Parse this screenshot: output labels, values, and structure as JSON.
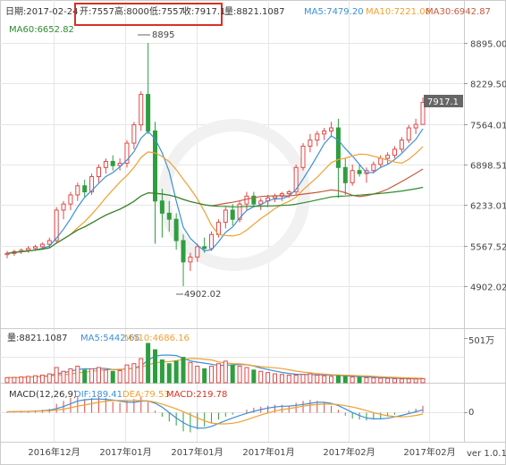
{
  "header": {
    "date": "日期:2017-02-24",
    "open": "开:7557",
    "high": "高:8000",
    "low": "低:7557",
    "close": "收:7917.1",
    "volume": "量:8821.1087",
    "ma5": "MA5:7479.20",
    "ma10": "MA10:7221.08",
    "ma30": "MA30:6942.87",
    "ma60": "MA60:6652.82"
  },
  "volume_panel": {
    "volume": "量:8821.1087",
    "ma5": "MA5:5442.65",
    "ma10": "MA10:4686.16",
    "axis_label": "501万"
  },
  "macd_panel": {
    "title": "MACD(12,26,9)",
    "dif": "DIF:189.41",
    "dea": "DEA:79.53",
    "macd": "MACD:219.78",
    "axis_label": "0"
  },
  "footer": {
    "version": "ver 1.0.1"
  },
  "colors": {
    "up": "#e04848",
    "down": "#2e9e3e",
    "ma5": "#3d8fd6",
    "ma10": "#f0a030",
    "ma30": "#c85a3c",
    "ma60": "#2e8b2e",
    "highlight": "#d93025",
    "grid": "#e6e6e6"
  },
  "chart_data": {
    "type": "candlestick",
    "price_axis_ticks": [
      "8895.00",
      "8229.50",
      "7564.01",
      "6898.51",
      "6233.01",
      "5567.52",
      "4902.02"
    ],
    "price_range": [
      4902.02,
      8895.0
    ],
    "x_tick_labels": [
      "2016年12月",
      "2017年01月",
      "2017年01月",
      "2017年01月",
      "2017年02月",
      "2017年02月"
    ],
    "last_price_label": "7917.1",
    "high_marker": "8895",
    "low_marker": "4902.02",
    "candles": [
      [
        5420,
        5480,
        5360,
        5440
      ],
      [
        5440,
        5500,
        5400,
        5470
      ],
      [
        5470,
        5520,
        5430,
        5490
      ],
      [
        5490,
        5560,
        5450,
        5520
      ],
      [
        5520,
        5580,
        5480,
        5550
      ],
      [
        5550,
        5620,
        5510,
        5590
      ],
      [
        5590,
        5700,
        5540,
        5650
      ],
      [
        5650,
        6200,
        5620,
        6150
      ],
      [
        6150,
        6300,
        6000,
        6250
      ],
      [
        6250,
        6450,
        6150,
        6400
      ],
      [
        6400,
        6600,
        6300,
        6550
      ],
      [
        6550,
        6650,
        6350,
        6450
      ],
      [
        6450,
        6750,
        6400,
        6700
      ],
      [
        6700,
        6900,
        6600,
        6850
      ],
      [
        6850,
        7000,
        6750,
        6950
      ],
      [
        6950,
        7050,
        6800,
        6880
      ],
      [
        6880,
        7000,
        6800,
        6920
      ],
      [
        6920,
        7300,
        6850,
        7250
      ],
      [
        7250,
        7600,
        7150,
        7550
      ],
      [
        7550,
        8100,
        7450,
        8050
      ],
      [
        8050,
        8895,
        7400,
        7450
      ],
      [
        7450,
        7600,
        5600,
        6300
      ],
      [
        6300,
        6500,
        5700,
        6100
      ],
      [
        6100,
        6300,
        5800,
        6000
      ],
      [
        6000,
        6100,
        5500,
        5650
      ],
      [
        5650,
        5750,
        4902.02,
        5300
      ],
      [
        5300,
        5450,
        5150,
        5380
      ],
      [
        5380,
        5600,
        5300,
        5550
      ],
      [
        5550,
        5700,
        5450,
        5520
      ],
      [
        5520,
        5800,
        5480,
        5750
      ],
      [
        5750,
        6000,
        5700,
        5950
      ],
      [
        5950,
        6200,
        5850,
        6150
      ],
      [
        6150,
        6250,
        5900,
        6000
      ],
      [
        6000,
        6300,
        5950,
        6250
      ],
      [
        6250,
        6450,
        6150,
        6380
      ],
      [
        6380,
        6450,
        6200,
        6250
      ],
      [
        6250,
        6350,
        6150,
        6300
      ],
      [
        6300,
        6400,
        6200,
        6350
      ],
      [
        6350,
        6420,
        6280,
        6380
      ],
      [
        6380,
        6450,
        6300,
        6420
      ],
      [
        6420,
        6480,
        6350,
        6450
      ],
      [
        6450,
        6900,
        6400,
        6850
      ],
      [
        6850,
        7250,
        6800,
        7200
      ],
      [
        7200,
        7400,
        7100,
        7300
      ],
      [
        7300,
        7450,
        7200,
        7400
      ],
      [
        7400,
        7500,
        7300,
        7450
      ],
      [
        7450,
        7600,
        7350,
        7500
      ],
      [
        7500,
        7650,
        6350,
        6850
      ],
      [
        6850,
        7000,
        6400,
        6600
      ],
      [
        6600,
        6900,
        6550,
        6800
      ],
      [
        6800,
        6900,
        6700,
        6750
      ],
      [
        6750,
        6850,
        6600,
        6800
      ],
      [
        6800,
        6950,
        6750,
        6900
      ],
      [
        6900,
        7050,
        6850,
        7000
      ],
      [
        7000,
        7100,
        6900,
        7050
      ],
      [
        7050,
        7200,
        7000,
        7150
      ],
      [
        7150,
        7350,
        7100,
        7300
      ],
      [
        7300,
        7550,
        7250,
        7500
      ],
      [
        7500,
        7650,
        7400,
        7557
      ],
      [
        7557,
        8000,
        7557,
        7917.1
      ]
    ],
    "volume": [
      400,
      420,
      450,
      500,
      550,
      600,
      700,
      1200,
      900,
      1100,
      1300,
      1000,
      1100,
      1200,
      1000,
      900,
      950,
      1400,
      1500,
      1900,
      3100,
      2600,
      1800,
      1500,
      1700,
      2000,
      1600,
      1300,
      1100,
      1300,
      1500,
      1700,
      1400,
      1300,
      1200,
      1000,
      900,
      800,
      700,
      650,
      600,
      600,
      650,
      700,
      600,
      550,
      500,
      550,
      500,
      450,
      420,
      400,
      380,
      360,
      340,
      320,
      300,
      300,
      300,
      320
    ],
    "macd_hist": [
      0.05,
      0.06,
      0.08,
      0.1,
      0.12,
      0.15,
      0.2,
      0.45,
      0.6,
      0.75,
      0.85,
      0.7,
      0.75,
      0.8,
      0.75,
      0.55,
      0.5,
      0.6,
      0.7,
      0.8,
      0.55,
      0.1,
      -0.2,
      -0.45,
      -0.65,
      -0.95,
      -1.0,
      -0.85,
      -0.7,
      -0.55,
      -0.35,
      -0.2,
      -0.1,
      0.0,
      0.15,
      0.25,
      0.3,
      0.35,
      0.4,
      0.4,
      0.35,
      0.5,
      0.6,
      0.65,
      0.6,
      0.5,
      0.35,
      0.15,
      -0.15,
      -0.3,
      -0.35,
      -0.4,
      -0.35,
      -0.3,
      -0.2,
      -0.1,
      0.0,
      0.1,
      0.2,
      0.35
    ]
  }
}
